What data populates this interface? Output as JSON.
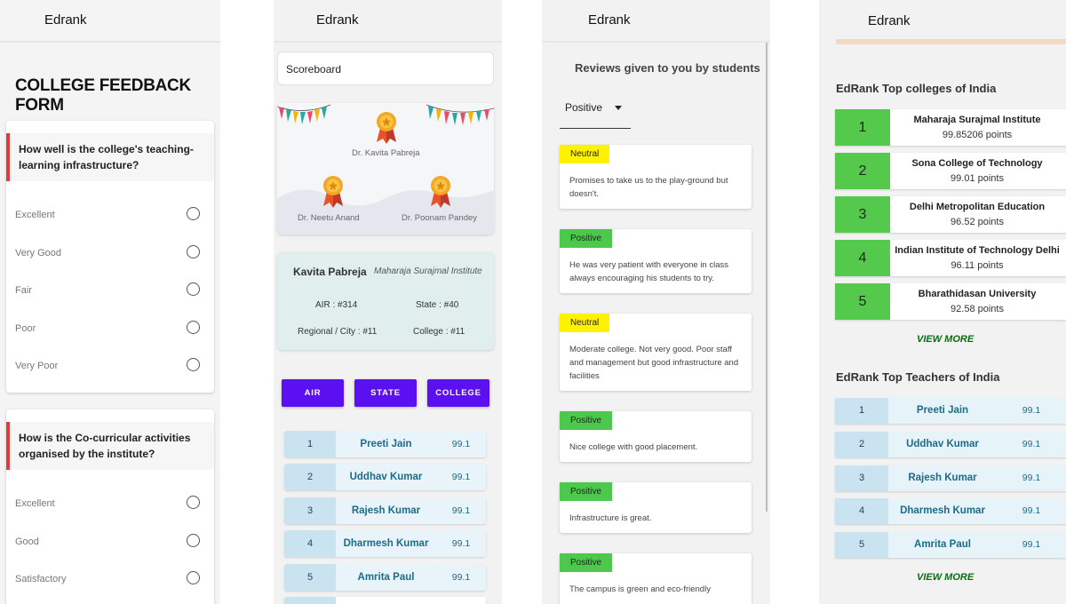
{
  "app_name": "Edrank",
  "feedback_form": {
    "heading": "COLLEGE FEEDBACK FORM",
    "questions": [
      {
        "text": "How well is the college's teaching-learning infrastructure?",
        "options": [
          "Excellent",
          "Very Good",
          "Fair",
          "Poor",
          "Very Poor"
        ]
      },
      {
        "text": "How is the Co-curricular activities organised by the institute?",
        "options": [
          "Excellent",
          "Good",
          "Satisfactory"
        ]
      }
    ]
  },
  "scoreboard": {
    "input_value": "Scoreboard",
    "podium": {
      "first": "Dr. Kavita Pabreja",
      "second": "Dr. Neetu Anand",
      "third": "Dr. Poonam Pandey"
    },
    "profile": {
      "name": "Kavita Pabreja",
      "institute": "Maharaja Surajmal Institute",
      "air": "AIR : #314",
      "state": "State : #40",
      "regional": "Regional / City : #11",
      "college": "College : #11"
    },
    "tabs": [
      "AIR",
      "STATE",
      "COLLEGE"
    ],
    "rankings": [
      {
        "rank": "1",
        "name": "Preeti Jain",
        "score": "99.1"
      },
      {
        "rank": "2",
        "name": "Uddhav Kumar",
        "score": "99.1"
      },
      {
        "rank": "3",
        "name": "Rajesh Kumar",
        "score": "99.1"
      },
      {
        "rank": "4",
        "name": "Dharmesh Kumar",
        "score": "99.1"
      },
      {
        "rank": "5",
        "name": "Amrita Paul",
        "score": "99.1"
      }
    ]
  },
  "reviews": {
    "heading": "Reviews given to you by students",
    "filter_value": "Positive",
    "items": [
      {
        "sentiment": "Neutral",
        "text": "Promises to take us to the play-ground but doesn't."
      },
      {
        "sentiment": "Positive",
        "text": "He was very patient with everyone in class always encouraging his students to try."
      },
      {
        "sentiment": "Neutral",
        "text": "Moderate college. Not very good. Poor staff and management but good infrastructure and facilities"
      },
      {
        "sentiment": "Positive",
        "text": "Nice college with good placement."
      },
      {
        "sentiment": "Positive",
        "text": "Infrastructure is great."
      },
      {
        "sentiment": "Positive",
        "text": "The campus is green and eco-friendly"
      }
    ],
    "colors": {
      "neutral": "#fff200",
      "positive": "#4cc94c"
    }
  },
  "top_lists": {
    "colleges_heading": "EdRank Top colleges of India",
    "colleges": [
      {
        "rank": "1",
        "name": "Maharaja Surajmal Institute",
        "points": "99.85206 points"
      },
      {
        "rank": "2",
        "name": "Sona College of Technology",
        "points": "99.01 points"
      },
      {
        "rank": "3",
        "name": "Delhi Metropolitan Education",
        "points": "96.52 points"
      },
      {
        "rank": "4",
        "name": "Indian Institute of Technology Delhi",
        "points": "96.11 points"
      },
      {
        "rank": "5",
        "name": "Bharathidasan University",
        "points": "92.58 points"
      }
    ],
    "view_more": "VIEW MORE",
    "teachers_heading": "EdRank Top Teachers of India",
    "teachers": [
      {
        "rank": "1",
        "name": "Preeti Jain",
        "score": "99.1"
      },
      {
        "rank": "2",
        "name": "Uddhav Kumar",
        "score": "99.1"
      },
      {
        "rank": "3",
        "name": "Rajesh Kumar",
        "score": "99.1"
      },
      {
        "rank": "4",
        "name": "Dharmesh Kumar",
        "score": "99.1"
      },
      {
        "rank": "5",
        "name": "Amrita Paul",
        "score": "99.1"
      }
    ]
  },
  "icons": [
    "radio-button-icon",
    "medal-icon",
    "bunting-icon",
    "dropdown-caret-icon"
  ]
}
